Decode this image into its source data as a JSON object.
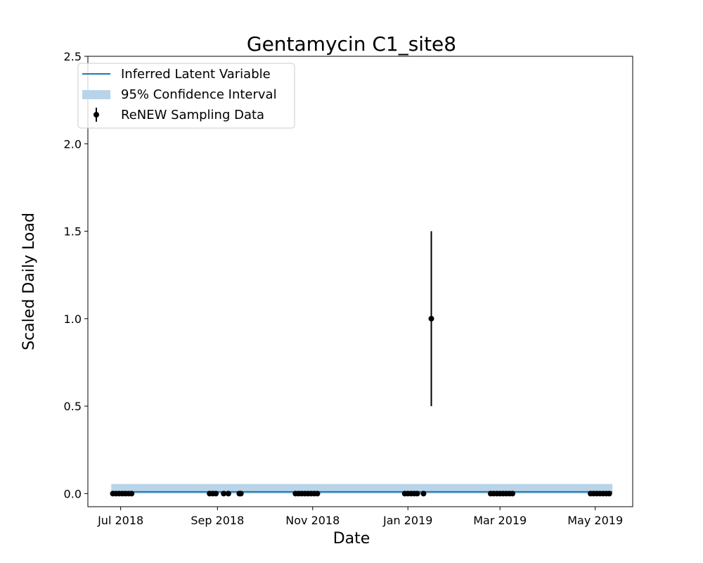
{
  "chart_data": {
    "type": "line",
    "title": "Gentamycin C1_site8",
    "xlabel": "Date",
    "ylabel": "Scaled Daily Load",
    "xlim": [
      "2018-06-10",
      "2019-05-25"
    ],
    "ylim": [
      -0.075,
      2.5
    ],
    "x_ticks": [
      {
        "date": "2018-07-01",
        "label": "Jul 2018"
      },
      {
        "date": "2018-09-01",
        "label": "Sep 2018"
      },
      {
        "date": "2018-11-01",
        "label": "Nov 2018"
      },
      {
        "date": "2019-01-01",
        "label": "Jan 2019"
      },
      {
        "date": "2019-03-01",
        "label": "Mar 2019"
      },
      {
        "date": "2019-05-01",
        "label": "May 2019"
      }
    ],
    "y_ticks": [
      {
        "value": 0.0,
        "label": "0.0"
      },
      {
        "value": 0.5,
        "label": "0.5"
      },
      {
        "value": 1.0,
        "label": "1.0"
      },
      {
        "value": 1.5,
        "label": "1.5"
      },
      {
        "value": 2.0,
        "label": "2.0"
      },
      {
        "value": 2.5,
        "label": "2.5"
      }
    ],
    "legend_position": "top-left",
    "grid": false,
    "series": [
      {
        "name": "Inferred Latent Variable",
        "kind": "line",
        "color": "#1f77b4",
        "x": [
          "2018-06-25",
          "2019-05-12"
        ],
        "y": [
          0.01,
          0.01
        ]
      },
      {
        "name": "95% Confidence Interval",
        "kind": "band",
        "color": "#b9d4e9",
        "x": [
          "2018-06-25",
          "2019-05-12"
        ],
        "lower": [
          0.0,
          0.0
        ],
        "upper": [
          0.055,
          0.055
        ]
      },
      {
        "name": "ReNEW Sampling Data",
        "kind": "errorbar",
        "color": "#000000",
        "x": [
          "2018-06-26",
          "2018-06-28",
          "2018-06-30",
          "2018-07-02",
          "2018-07-04",
          "2018-07-06",
          "2018-07-08",
          "2018-08-27",
          "2018-08-29",
          "2018-08-31",
          "2018-09-05",
          "2018-09-08",
          "2018-09-15",
          "2018-09-16",
          "2018-10-21",
          "2018-10-23",
          "2018-10-25",
          "2018-10-27",
          "2018-10-29",
          "2018-10-31",
          "2018-11-02",
          "2018-11-04",
          "2018-12-30",
          "2019-01-01",
          "2019-01-03",
          "2019-01-05",
          "2019-01-07",
          "2019-01-11",
          "2019-01-16",
          "2019-02-23",
          "2019-02-25",
          "2019-02-27",
          "2019-03-01",
          "2019-03-03",
          "2019-03-05",
          "2019-03-07",
          "2019-03-09",
          "2019-04-28",
          "2019-04-30",
          "2019-05-02",
          "2019-05-04",
          "2019-05-06",
          "2019-05-08",
          "2019-05-10"
        ],
        "y": [
          0,
          0,
          0,
          0,
          0,
          0,
          0,
          0,
          0,
          0,
          0,
          0,
          0,
          0,
          0,
          0,
          0,
          0,
          0,
          0,
          0,
          0,
          0,
          0,
          0,
          0,
          0,
          0,
          1.0,
          0,
          0,
          0,
          0,
          0,
          0,
          0,
          0,
          0,
          0,
          0,
          0,
          0,
          0,
          0
        ],
        "yerr": [
          0,
          0,
          0,
          0,
          0,
          0,
          0,
          0,
          0,
          0,
          0,
          0,
          0,
          0,
          0,
          0,
          0,
          0,
          0,
          0,
          0,
          0,
          0,
          0,
          0,
          0,
          0,
          0,
          0.5,
          0,
          0,
          0,
          0,
          0,
          0,
          0,
          0,
          0,
          0,
          0,
          0,
          0,
          0,
          0
        ]
      }
    ]
  }
}
